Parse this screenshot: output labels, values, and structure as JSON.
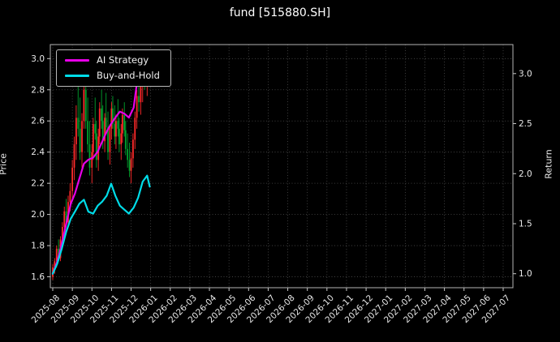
{
  "title": "fund [515880.SH]",
  "chart_data": {
    "type": "mixed",
    "subtype": [
      "candlestick",
      "line"
    ],
    "title": "fund [515880.SH]",
    "background": "#000000",
    "grid": {
      "on": true,
      "style": "dotted",
      "color": "#4d4d4d"
    },
    "legend_position": "upper left",
    "left_axis": {
      "label": "Price",
      "ticks": [
        1.6,
        1.8,
        2.0,
        2.2,
        2.4,
        2.6,
        2.8,
        3.0
      ],
      "range": [
        1.53,
        3.09
      ]
    },
    "right_axis": {
      "label": "Return",
      "ticks": [
        1.0,
        1.5,
        2.0,
        2.5,
        3.0
      ],
      "range": [
        0.86,
        3.29
      ]
    },
    "x_axis": {
      "tick_labels": [
        "2025-08",
        "2025-09",
        "2025-10",
        "2025-11",
        "2025-12",
        "2026-01",
        "2026-02",
        "2026-03",
        "2026-04",
        "2026-05",
        "2026-06",
        "2026-07",
        "2026-08",
        "2026-09",
        "2026-10",
        "2026-11",
        "2026-12",
        "2027-01",
        "2027-02",
        "2027-03",
        "2027-04",
        "2027-05",
        "2027-06",
        "2027-07"
      ],
      "note": "data occupies only 2025-08 through 2026-01; remainder of axis is empty"
    },
    "candles": {
      "up_color": "#ff2a2a",
      "down_color": "#00a32e",
      "columns": [
        "date",
        "open",
        "high",
        "low",
        "close"
      ],
      "data": [
        [
          "2025-08-01",
          1.6,
          1.68,
          1.58,
          1.66
        ],
        [
          "2025-08-04",
          1.66,
          1.72,
          1.62,
          1.7
        ],
        [
          "2025-08-07",
          1.7,
          1.8,
          1.66,
          1.78
        ],
        [
          "2025-08-10",
          1.78,
          1.84,
          1.7,
          1.72
        ],
        [
          "2025-08-13",
          1.72,
          1.86,
          1.7,
          1.84
        ],
        [
          "2025-08-16",
          1.84,
          1.95,
          1.8,
          1.92
        ],
        [
          "2025-08-19",
          1.92,
          2.05,
          1.88,
          2.02
        ],
        [
          "2025-08-22",
          2.02,
          2.1,
          1.92,
          1.95
        ],
        [
          "2025-08-25",
          1.95,
          2.12,
          1.93,
          2.08
        ],
        [
          "2025-08-28",
          2.08,
          2.2,
          2.02,
          2.15
        ],
        [
          "2025-09-01",
          2.15,
          2.35,
          2.1,
          2.3
        ],
        [
          "2025-09-04",
          2.3,
          2.5,
          2.22,
          2.45
        ],
        [
          "2025-09-07",
          2.45,
          2.7,
          2.35,
          2.62
        ],
        [
          "2025-09-10",
          2.62,
          2.85,
          2.5,
          2.55
        ],
        [
          "2025-09-13",
          2.55,
          2.75,
          2.35,
          2.4
        ],
        [
          "2025-09-16",
          2.4,
          2.65,
          2.3,
          2.6
        ],
        [
          "2025-09-19",
          2.6,
          2.88,
          2.55,
          2.8
        ],
        [
          "2025-09-22",
          2.8,
          2.9,
          2.55,
          2.6
        ],
        [
          "2025-09-25",
          2.6,
          2.75,
          2.4,
          2.45
        ],
        [
          "2025-09-28",
          2.45,
          2.6,
          2.25,
          2.3
        ],
        [
          "2025-10-01",
          2.3,
          2.45,
          2.2,
          2.4
        ],
        [
          "2025-10-03",
          2.4,
          2.62,
          2.35,
          2.58
        ],
        [
          "2025-10-06",
          2.58,
          2.75,
          2.48,
          2.52
        ],
        [
          "2025-10-08",
          2.52,
          2.6,
          2.3,
          2.35
        ],
        [
          "2025-10-11",
          2.35,
          2.55,
          2.28,
          2.5
        ],
        [
          "2025-10-13",
          2.5,
          2.72,
          2.45,
          2.68
        ],
        [
          "2025-10-16",
          2.68,
          2.8,
          2.55,
          2.6
        ],
        [
          "2025-10-18",
          2.6,
          2.7,
          2.42,
          2.47
        ],
        [
          "2025-10-21",
          2.47,
          2.65,
          2.4,
          2.62
        ],
        [
          "2025-10-23",
          2.62,
          2.78,
          2.52,
          2.56
        ],
        [
          "2025-10-26",
          2.56,
          2.66,
          2.35,
          2.4
        ],
        [
          "2025-10-29",
          2.4,
          2.58,
          2.32,
          2.55
        ],
        [
          "2025-11-01",
          2.55,
          2.72,
          2.48,
          2.68
        ],
        [
          "2025-11-03",
          2.68,
          2.76,
          2.55,
          2.58
        ],
        [
          "2025-11-06",
          2.58,
          2.7,
          2.45,
          2.5
        ],
        [
          "2025-11-08",
          2.5,
          2.64,
          2.42,
          2.6
        ],
        [
          "2025-11-11",
          2.6,
          2.74,
          2.5,
          2.55
        ],
        [
          "2025-11-13",
          2.55,
          2.62,
          2.4,
          2.45
        ],
        [
          "2025-11-16",
          2.45,
          2.58,
          2.35,
          2.52
        ],
        [
          "2025-11-18",
          2.52,
          2.68,
          2.46,
          2.64
        ],
        [
          "2025-11-21",
          2.64,
          2.72,
          2.5,
          2.54
        ],
        [
          "2025-11-23",
          2.54,
          2.6,
          2.38,
          2.42
        ],
        [
          "2025-11-26",
          2.42,
          2.52,
          2.3,
          2.35
        ],
        [
          "2025-11-29",
          2.35,
          2.46,
          2.24,
          2.28
        ],
        [
          "2025-12-01",
          2.28,
          2.4,
          2.2,
          2.36
        ],
        [
          "2025-12-04",
          2.36,
          2.52,
          2.3,
          2.48
        ],
        [
          "2025-12-07",
          2.48,
          2.66,
          2.42,
          2.62
        ],
        [
          "2025-12-10",
          2.62,
          2.8,
          2.55,
          2.76
        ],
        [
          "2025-12-13",
          2.76,
          2.88,
          2.66,
          2.72
        ],
        [
          "2025-12-16",
          2.72,
          2.86,
          2.64,
          2.82
        ],
        [
          "2025-12-19",
          2.82,
          2.94,
          2.72,
          2.9
        ],
        [
          "2025-12-22",
          2.9,
          2.98,
          2.8,
          2.86
        ],
        [
          "2025-12-26",
          2.86,
          2.96,
          2.76,
          2.92
        ],
        [
          "2025-12-30",
          2.92,
          2.97,
          2.82,
          2.88
        ]
      ]
    },
    "series": [
      {
        "name": "AI Strategy",
        "type": "line",
        "axis": "right",
        "color": "#e800e8",
        "x": [
          "2025-08-01",
          "2025-08-08",
          "2025-08-15",
          "2025-08-22",
          "2025-08-29",
          "2025-09-05",
          "2025-09-12",
          "2025-09-19",
          "2025-09-26",
          "2025-10-03",
          "2025-10-10",
          "2025-10-17",
          "2025-10-24",
          "2025-10-31",
          "2025-11-07",
          "2025-11-14",
          "2025-11-21",
          "2025-11-28",
          "2025-12-05",
          "2025-12-12",
          "2025-12-19",
          "2025-12-26",
          "2025-12-30"
        ],
        "y": [
          1.0,
          1.12,
          1.3,
          1.5,
          1.7,
          1.8,
          1.95,
          2.1,
          2.14,
          2.16,
          2.22,
          2.32,
          2.42,
          2.5,
          2.56,
          2.62,
          2.6,
          2.56,
          2.66,
          3.0,
          3.05,
          3.08,
          3.02
        ]
      },
      {
        "name": "Buy-and-Hold",
        "type": "line",
        "axis": "right",
        "color": "#00dce8",
        "x": [
          "2025-08-01",
          "2025-08-08",
          "2025-08-15",
          "2025-08-22",
          "2025-08-29",
          "2025-09-05",
          "2025-09-12",
          "2025-09-19",
          "2025-09-26",
          "2025-10-03",
          "2025-10-10",
          "2025-10-17",
          "2025-10-24",
          "2025-10-31",
          "2025-11-07",
          "2025-11-14",
          "2025-11-21",
          "2025-11-28",
          "2025-12-05",
          "2025-12-12",
          "2025-12-19",
          "2025-12-26",
          "2025-12-30"
        ],
        "y": [
          1.0,
          1.1,
          1.25,
          1.42,
          1.55,
          1.62,
          1.7,
          1.74,
          1.62,
          1.6,
          1.68,
          1.72,
          1.78,
          1.9,
          1.78,
          1.68,
          1.64,
          1.6,
          1.66,
          1.76,
          1.92,
          1.98,
          1.87
        ]
      }
    ]
  }
}
